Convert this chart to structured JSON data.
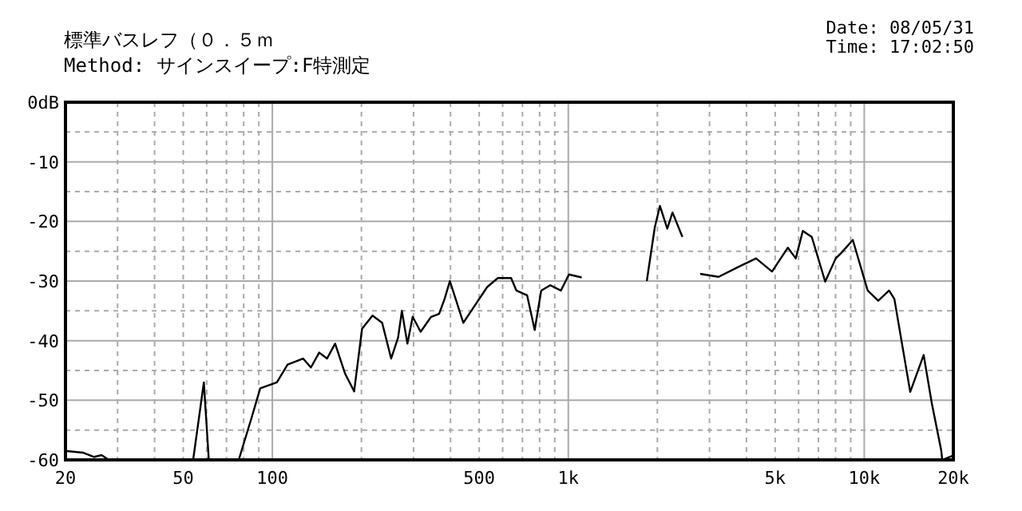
{
  "chart_data": {
    "type": "line",
    "title": "標準バスレフ（０．５ｍ",
    "subtitle": "Method: サインスイープ:F特測定",
    "annotations": [
      "Date: 08/05/31",
      "Time: 17:02:50"
    ],
    "log": "x",
    "grid": true,
    "line_style": "solid",
    "xlim": [
      20,
      20000
    ],
    "ylim": [
      -60,
      0
    ],
    "xticks": [
      20,
      50,
      100,
      500,
      {
        "value": 1000,
        "label": "1k"
      },
      {
        "value": 5000,
        "label": "5k"
      },
      {
        "value": 10000,
        "label": "10k"
      },
      {
        "value": 20000,
        "label": "20k"
      }
    ],
    "yticks": [
      {
        "value": 0,
        "label": "0dB"
      },
      -10,
      -20,
      -30,
      -40,
      -50,
      -60
    ],
    "series": [
      {
        "color": "#000000",
        "x": [
          20,
          23,
          25,
          26.5,
          28,
          54,
          58.7,
          61,
          77,
          85,
          91,
          103.6,
          112.6,
          127,
          135,
          144,
          153,
          163,
          176,
          189,
          201,
          218,
          235,
          252,
          266,
          274,
          286,
          298,
          317,
          344,
          366,
          382,
          398,
          442,
          470,
          532,
          578,
          641,
          668,
          726,
          770,
          810,
          869,
          944,
          1005,
          1110
        ],
        "values": [
          -58.5,
          -58.8,
          -59.5,
          -59.2,
          -60,
          -60,
          -47,
          -60,
          -60,
          -53,
          -48,
          -47,
          -44,
          -43,
          -44.5,
          -42,
          -43,
          -40.5,
          -45.5,
          -48.5,
          -38,
          -35.8,
          -37,
          -43,
          -39.5,
          -35,
          -40.5,
          -36,
          -38.5,
          -36,
          -35.5,
          -33,
          -30,
          -37,
          -35,
          -31,
          -29.5,
          -29.5,
          -31.6,
          -32.4,
          -38.2,
          -31.6,
          -30.7,
          -31.6,
          -28.9,
          -29.4
        ]
      },
      {
        "color": "#000000",
        "x": [
          1842,
          1960,
          2040,
          2160,
          2250,
          2430
        ],
        "values": [
          -30,
          -21,
          -17.4,
          -21.2,
          -18.5,
          -22.6
        ]
      },
      {
        "color": "#000000",
        "x": [
          2790,
          3220,
          3800,
          4310,
          4880,
          5520,
          5870,
          6200,
          6650,
          7380,
          8010,
          8360,
          9150,
          10270,
          11150,
          12130,
          12640,
          14300,
          15880,
          16900,
          18200,
          18350,
          19870
        ],
        "values": [
          -28.8,
          -29.3,
          -27.5,
          -26.2,
          -28.4,
          -24.4,
          -26.2,
          -21.6,
          -22.6,
          -30.1,
          -26.2,
          -25.3,
          -23.1,
          -31.6,
          -33.3,
          -31.6,
          -33,
          -48.6,
          -42.4,
          -50.4,
          -58.4,
          -60,
          -59.3
        ]
      }
    ]
  }
}
